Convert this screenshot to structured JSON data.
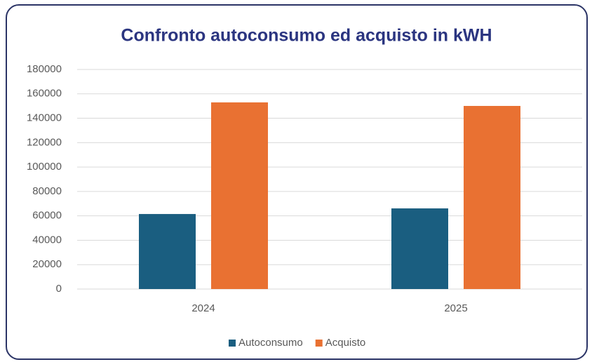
{
  "chart_data": {
    "type": "bar",
    "title": "Confronto autoconsumo ed acquisto in kWH",
    "categories": [
      "2024",
      "2025"
    ],
    "series": [
      {
        "name": "Autoconsumo",
        "color": "#1a5e80",
        "values": [
          61500,
          66100
        ]
      },
      {
        "name": "Acquisto",
        "color": "#e97132",
        "values": [
          153000,
          150100
        ]
      }
    ],
    "ylim": [
      0,
      180000
    ],
    "yticks": [
      0,
      20000,
      40000,
      60000,
      80000,
      100000,
      120000,
      140000,
      160000,
      180000
    ],
    "grid": true,
    "legend": "bottom"
  }
}
